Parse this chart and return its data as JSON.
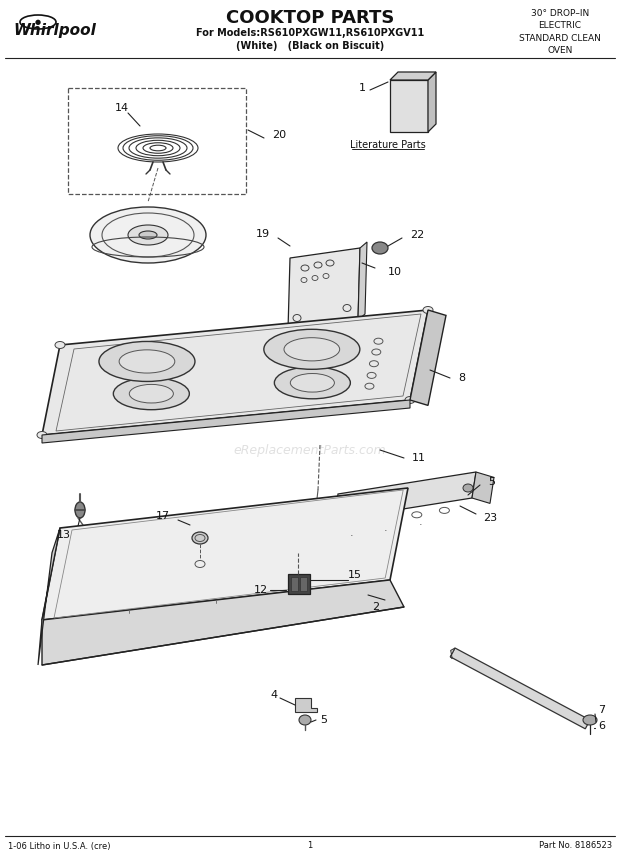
{
  "title": "COOKTOP PARTS",
  "subtitle_line1": "For Models:RS610PXGW11,RS610PXGV11",
  "subtitle_line2": "(White)   (Black on Biscuit)",
  "top_right_text": "30° DROP–IN\nELECTRIC\nSTANDARD CLEAN\nOVEN",
  "bottom_left": "1-06 Litho in U.S.A. (cre)",
  "bottom_center": "1",
  "bottom_right": "Part No. 8186523",
  "watermark": "eReplacementParts.com",
  "literature_label": "Literature Parts",
  "bg": "#ffffff",
  "lc": "#222222"
}
